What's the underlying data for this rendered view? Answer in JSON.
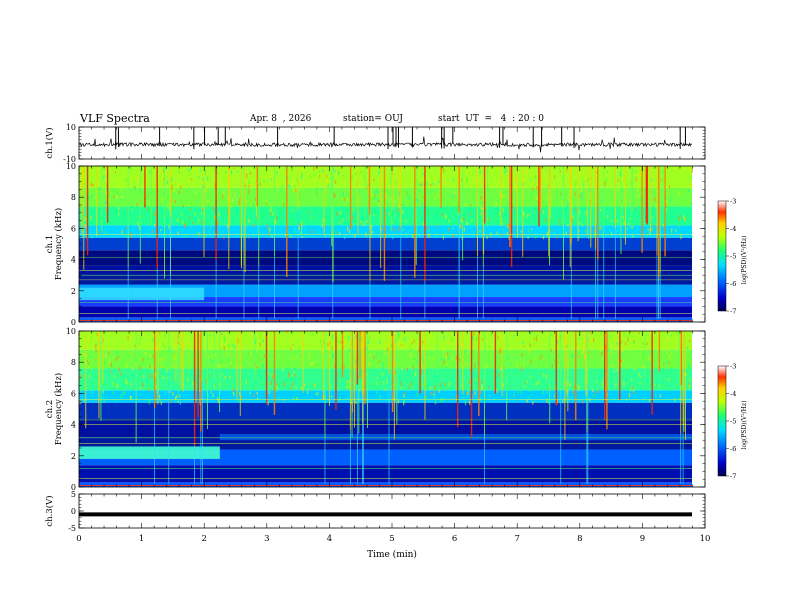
{
  "header": {
    "title": "VLF Spectra",
    "date": "Apr. 8  , 2026",
    "station": "station= OUJ",
    "start": "start  UT  =   4  : 20 : 0"
  },
  "chart_data": [
    {
      "type": "line",
      "panel": "ch.1 waveform",
      "ylabel": "ch.1(V)",
      "ylim": [
        -10,
        10
      ],
      "yticks": [
        "10",
        "-10"
      ],
      "xlim": [
        0,
        10
      ]
    },
    {
      "type": "heatmap",
      "panel": "ch.1 spectrogram",
      "ylabel": "ch.1\nFrequency (kHz)",
      "ylim": [
        0,
        10
      ],
      "yticks": [
        "0",
        "2",
        "4",
        "6",
        "8",
        "10"
      ],
      "colorbar": {
        "label": "log(PSD)(V²/Hz)",
        "range": [
          -7,
          -3
        ],
        "ticks": [
          "-3",
          "-4",
          "-5",
          "-6",
          "-7"
        ]
      }
    },
    {
      "type": "heatmap",
      "panel": "ch.2 spectrogram",
      "ylabel": "ch.2\nFrequency (kHz)",
      "ylim": [
        0,
        10
      ],
      "yticks": [
        "0",
        "2",
        "4",
        "6",
        "8",
        "10"
      ],
      "colorbar": {
        "label": "log(PSD)(V²/Hz)",
        "range": [
          -7,
          -3
        ],
        "ticks": [
          "-3",
          "-4",
          "-5",
          "-6",
          "-7"
        ]
      }
    },
    {
      "type": "line",
      "panel": "ch.3 waveform",
      "ylabel": "ch.3(V)",
      "ylim": [
        -5,
        5
      ],
      "yticks": [
        "5",
        "0",
        "-5"
      ],
      "xlabel": "Time (min)",
      "xlim": [
        0,
        10
      ],
      "xticks": [
        "0",
        "1",
        "2",
        "3",
        "4",
        "5",
        "6",
        "7",
        "8",
        "9",
        "10"
      ],
      "flat_value": -1
    }
  ]
}
